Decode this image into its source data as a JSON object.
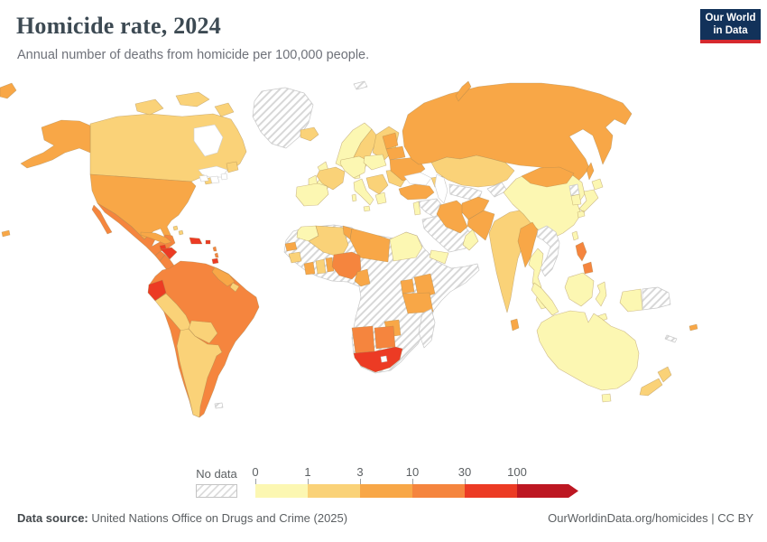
{
  "header": {
    "title": "Homicide rate, 2024",
    "subtitle": "Annual number of deaths from homicide per 100,000 people."
  },
  "logo": {
    "line1": "Our World",
    "line2": "in Data",
    "bg_color": "#12325a",
    "accent_color": "#d6292e"
  },
  "legend": {
    "no_data_label": "No data",
    "tick_labels": [
      "0",
      "1",
      "3",
      "10",
      "30",
      "100"
    ],
    "bin_colors": {
      "b1": "#fcf7b2",
      "b2": "#fad278",
      "b3": "#f8a747",
      "b4": "#f5853e",
      "b5": "#ec3b24",
      "b6": "#bd1722"
    },
    "bin_ranges": {
      "b1": "0-1",
      "b2": "1-3",
      "b3": "3-10",
      "b4": "10-30",
      "b5": "30-100",
      "b6": "100+"
    }
  },
  "footer": {
    "source_label": "Data source:",
    "source_text": " United Nations Office on Drugs and Crime (2025)",
    "credit_text": "OurWorldinData.org/homicides | CC BY"
  },
  "chart_data": {
    "type": "heatmap",
    "title": "Homicide rate, 2024",
    "unit": "deaths from homicide per 100,000 people",
    "scale_ticks": [
      0,
      1,
      3,
      10,
      30,
      100
    ],
    "legend_position": "bottom",
    "note": "choropleth world map; region values given as legend bins"
  },
  "map": {
    "border_color": "#a5854f",
    "hatch_line_color": "#d7d7d7",
    "hatch_border_color": "#c9c9c9",
    "water_color": "#ffffff",
    "regions": [
      {
        "id": "greenland",
        "bin": "nd"
      },
      {
        "id": "canada",
        "bin": "b2"
      },
      {
        "id": "canada-arctic",
        "bin": "b2"
      },
      {
        "id": "newfoundland",
        "bin": "b2"
      },
      {
        "id": "alaska",
        "bin": "b3"
      },
      {
        "id": "usa",
        "bin": "b3"
      },
      {
        "id": "nova-scotia",
        "bin": "b2"
      },
      {
        "id": "baja",
        "bin": "b4"
      },
      {
        "id": "mexico",
        "bin": "b4"
      },
      {
        "id": "guatemala",
        "bin": "b4"
      },
      {
        "id": "honduras",
        "bin": "b5"
      },
      {
        "id": "nicaragua",
        "bin": "b4"
      },
      {
        "id": "costa-rica",
        "bin": "b4"
      },
      {
        "id": "panama",
        "bin": "b4"
      },
      {
        "id": "cuba",
        "bin": "b3"
      },
      {
        "id": "jamaica",
        "bin": "b5"
      },
      {
        "id": "hispaniola",
        "bin": "b5"
      },
      {
        "id": "puerto-rico",
        "bin": "b5"
      },
      {
        "id": "bahamas",
        "bin": "b2"
      },
      {
        "id": "lesser-antilles",
        "bin": "b4"
      },
      {
        "id": "trinidad",
        "bin": "b5"
      },
      {
        "id": "south-america",
        "bin": "b4"
      },
      {
        "id": "ecuador",
        "bin": "b5"
      },
      {
        "id": "peru",
        "bin": "b2"
      },
      {
        "id": "bolivia",
        "bin": "b2"
      },
      {
        "id": "southern-cone",
        "bin": "b2"
      },
      {
        "id": "guyana-suriname",
        "bin": "b3"
      },
      {
        "id": "french-guiana",
        "bin": "b2"
      },
      {
        "id": "falklands",
        "bin": "nd"
      },
      {
        "id": "africa",
        "bin": "nd"
      },
      {
        "id": "morocco",
        "bin": "b1"
      },
      {
        "id": "algeria",
        "bin": "b2"
      },
      {
        "id": "tunisia",
        "bin": "b3"
      },
      {
        "id": "libya",
        "bin": "b3"
      },
      {
        "id": "egypt",
        "bin": "b1"
      },
      {
        "id": "senegal",
        "bin": "b3"
      },
      {
        "id": "guinea",
        "bin": "b2"
      },
      {
        "id": "ivory-coast",
        "bin": "b3"
      },
      {
        "id": "ghana",
        "bin": "b2"
      },
      {
        "id": "togo-benin",
        "bin": "b3"
      },
      {
        "id": "nigeria",
        "bin": "b4"
      },
      {
        "id": "cameroon",
        "bin": "b3"
      },
      {
        "id": "uganda",
        "bin": "b3"
      },
      {
        "id": "kenya",
        "bin": "b3"
      },
      {
        "id": "tanzania",
        "bin": "b3"
      },
      {
        "id": "zimbabwe",
        "bin": "b3"
      },
      {
        "id": "namibia",
        "bin": "b4"
      },
      {
        "id": "botswana",
        "bin": "b4"
      },
      {
        "id": "south-africa",
        "bin": "b5"
      },
      {
        "id": "lesotho",
        "bin": "water"
      },
      {
        "id": "madagascar",
        "bin": "nd"
      },
      {
        "id": "iceland",
        "bin": "b2"
      },
      {
        "id": "norway",
        "bin": "b1"
      },
      {
        "id": "sweden",
        "bin": "b2"
      },
      {
        "id": "finland",
        "bin": "b2"
      },
      {
        "id": "denmark",
        "bin": "b1"
      },
      {
        "id": "uk",
        "bin": "b1"
      },
      {
        "id": "ireland",
        "bin": "b1"
      },
      {
        "id": "france",
        "bin": "b2"
      },
      {
        "id": "iberia",
        "bin": "b1"
      },
      {
        "id": "germany-central",
        "bin": "b1"
      },
      {
        "id": "italy",
        "bin": "b1"
      },
      {
        "id": "poland",
        "bin": "b1"
      },
      {
        "id": "balkans",
        "bin": "b2"
      },
      {
        "id": "greece",
        "bin": "b1"
      },
      {
        "id": "romania-bulgaria",
        "bin": "b2"
      },
      {
        "id": "baltics",
        "bin": "b3"
      },
      {
        "id": "belarus",
        "bin": "b3"
      },
      {
        "id": "ukraine",
        "bin": "b3"
      },
      {
        "id": "russia",
        "bin": "b3"
      },
      {
        "id": "novaya-zemlya",
        "bin": "b3"
      },
      {
        "id": "svalbard",
        "bin": "nd"
      },
      {
        "id": "kazakhstan",
        "bin": "b2"
      },
      {
        "id": "turkey",
        "bin": "b3"
      },
      {
        "id": "caucasus",
        "bin": "b2"
      },
      {
        "id": "syria-iraq",
        "bin": "nd"
      },
      {
        "id": "israel-jordan",
        "bin": "b1"
      },
      {
        "id": "saudi-arabia",
        "bin": "nd"
      },
      {
        "id": "yemen",
        "bin": "b1"
      },
      {
        "id": "oman",
        "bin": "b1"
      },
      {
        "id": "iran",
        "bin": "b3"
      },
      {
        "id": "turkmen-uzbek",
        "bin": "nd"
      },
      {
        "id": "kyrgyz-tajik",
        "bin": "nd"
      },
      {
        "id": "afghanistan",
        "bin": "b3"
      },
      {
        "id": "pakistan",
        "bin": "b3"
      },
      {
        "id": "india",
        "bin": "b2"
      },
      {
        "id": "sri-lanka",
        "bin": "b3"
      },
      {
        "id": "china",
        "bin": "b1"
      },
      {
        "id": "mongolia",
        "bin": "b3"
      },
      {
        "id": "myanmar",
        "bin": "b3"
      },
      {
        "id": "thailand",
        "bin": "b1"
      },
      {
        "id": "indochina",
        "bin": "nd"
      },
      {
        "id": "malaysia",
        "bin": "b1"
      },
      {
        "id": "north-korea",
        "bin": "nd"
      },
      {
        "id": "south-korea",
        "bin": "b1"
      },
      {
        "id": "japan",
        "bin": "b1"
      },
      {
        "id": "sakhalin",
        "bin": "b3"
      },
      {
        "id": "taiwan",
        "bin": "b1"
      },
      {
        "id": "philippines",
        "bin": "b4"
      },
      {
        "id": "sumatra",
        "bin": "b1"
      },
      {
        "id": "borneo",
        "bin": "b1"
      },
      {
        "id": "java",
        "bin": "b1"
      },
      {
        "id": "sulawesi",
        "bin": "b1"
      },
      {
        "id": "timor",
        "bin": "b1"
      },
      {
        "id": "new-guinea-west",
        "bin": "b1"
      },
      {
        "id": "papua-new-guinea",
        "bin": "nd"
      },
      {
        "id": "australia",
        "bin": "b1"
      },
      {
        "id": "tasmania",
        "bin": "b1"
      },
      {
        "id": "new-zealand",
        "bin": "b2"
      },
      {
        "id": "fiji",
        "bin": "b3"
      },
      {
        "id": "new-caledonia",
        "bin": "nd"
      },
      {
        "id": "chukotka-wrap",
        "bin": "b3"
      },
      {
        "id": "hawaii",
        "bin": "b3"
      },
      {
        "id": "hudson-bay",
        "bin": "water"
      },
      {
        "id": "st-lawrence-gulf",
        "bin": "water"
      },
      {
        "id": "great-lakes",
        "bin": "water"
      },
      {
        "id": "caspian-sea",
        "bin": "water"
      },
      {
        "id": "black-sea",
        "bin": "water"
      }
    ]
  }
}
